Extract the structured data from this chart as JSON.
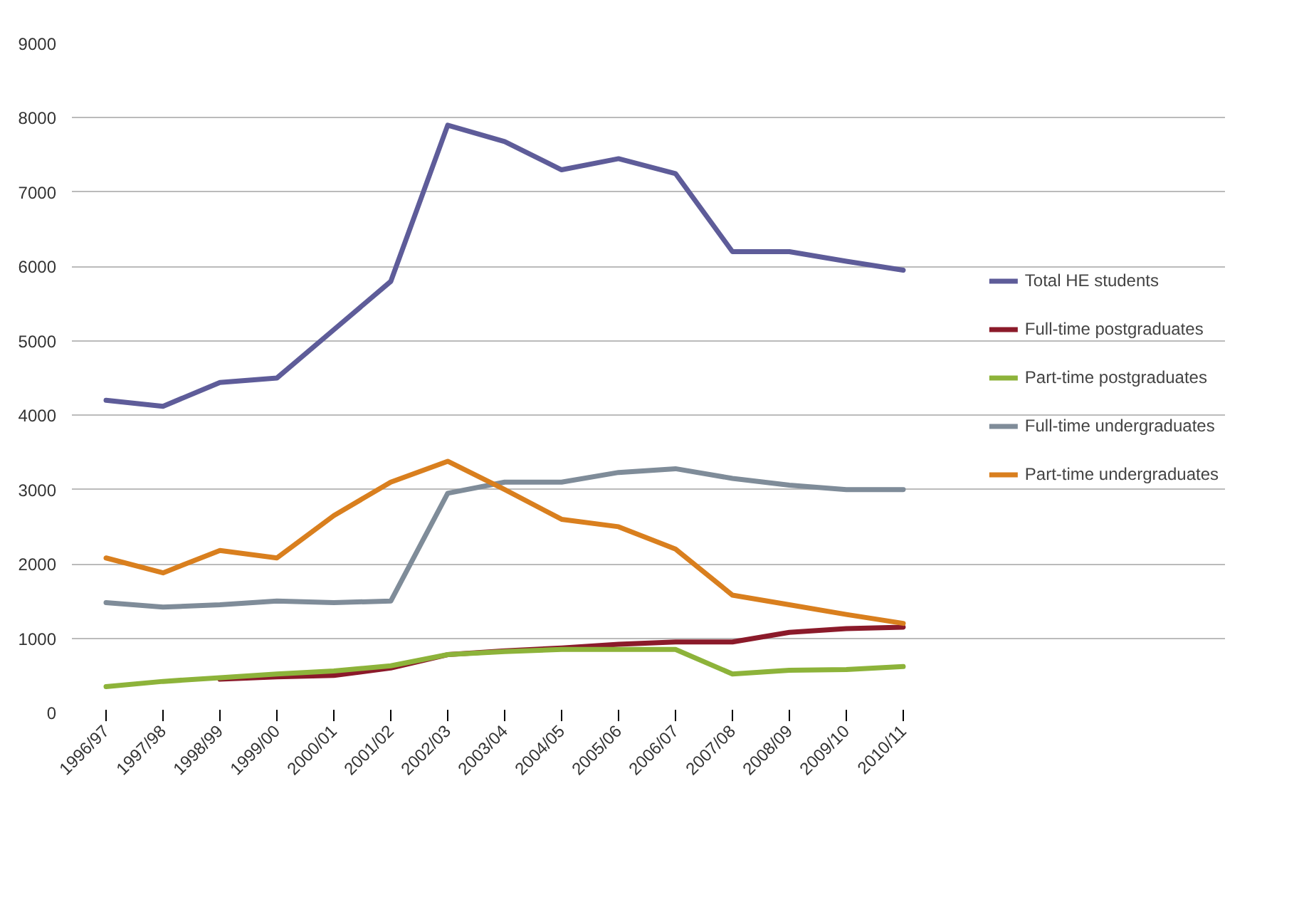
{
  "chart_data": {
    "type": "line",
    "categories": [
      "1996/97",
      "1997/98",
      "1998/99",
      "1999/00",
      "2000/01",
      "2001/02",
      "2002/03",
      "2003/04",
      "2004/05",
      "2005/06",
      "2006/07",
      "2007/08",
      "2008/09",
      "2009/10",
      "2010/11"
    ],
    "series": [
      {
        "name": "Total HE students",
        "color": "#5e5c99",
        "values": [
          4200,
          4120,
          4440,
          4500,
          5150,
          5800,
          7900,
          7680,
          7300,
          7450,
          7250,
          6200,
          6200,
          6070,
          5950
        ]
      },
      {
        "name": "Full-time postgraduates",
        "color": "#8b1a2a",
        "values": [
          null,
          null,
          450,
          480,
          500,
          600,
          780,
          830,
          870,
          920,
          950,
          950,
          1080,
          1130,
          1150
        ]
      },
      {
        "name": "Part-time postgraduates",
        "color": "#8db33a",
        "values": [
          350,
          420,
          470,
          520,
          560,
          630,
          780,
          820,
          850,
          850,
          850,
          520,
          570,
          580,
          620
        ]
      },
      {
        "name": "Full-time undergraduates",
        "color": "#7f8c99",
        "values": [
          1480,
          1420,
          1450,
          1500,
          1480,
          1500,
          2950,
          3100,
          3100,
          3230,
          3280,
          3150,
          3060,
          3000,
          3000
        ]
      },
      {
        "name": "Part-time undergraduates",
        "color": "#d97f1e",
        "values": [
          2080,
          1880,
          2180,
          2080,
          2650,
          3100,
          3380,
          3000,
          2600,
          2500,
          2200,
          1580,
          1450,
          1320,
          1200
        ]
      }
    ],
    "ylim": [
      0,
      9000
    ],
    "yticks": [
      0,
      1000,
      2000,
      3000,
      4000,
      5000,
      6000,
      7000,
      8000,
      9000
    ],
    "grid": "y",
    "legend": "right",
    "marker": "none",
    "line_style": "solid"
  }
}
